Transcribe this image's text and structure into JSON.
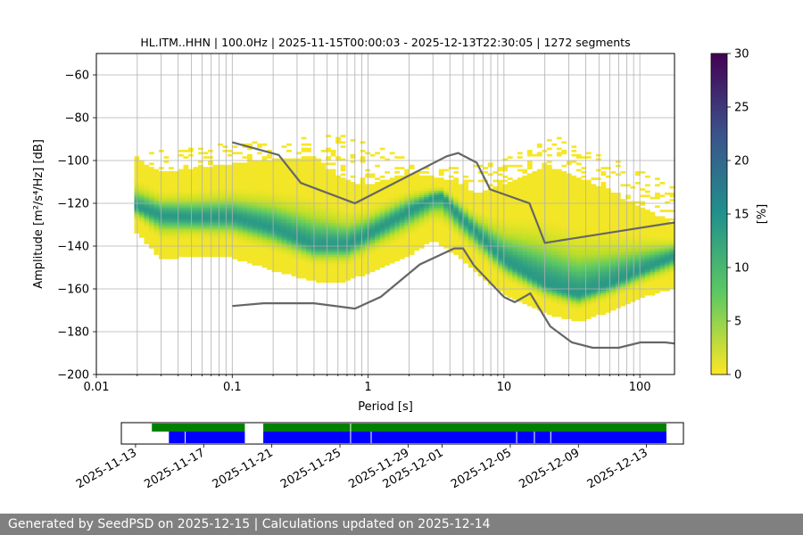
{
  "chart_data": [
    {
      "type": "heatmap",
      "title": "HL.ITM..HHN | 100.0Hz | 2025-11-15T00:00:03 - 2025-12-13T22:30:05 | 1272 segments",
      "xlabel": "Period [s]",
      "ylabel": "Amplitude [m²/s⁴/Hz] [dB]",
      "x_scale": "log",
      "xlim": [
        0.01,
        180
      ],
      "ylim": [
        -200,
        -50
      ],
      "x_ticks": [
        0.01,
        0.1,
        1,
        10,
        100
      ],
      "x_tick_labels": [
        "0.01",
        "0.1",
        "1",
        "10",
        "100"
      ],
      "y_ticks": [
        -200,
        -180,
        -160,
        -140,
        -120,
        -100,
        -80,
        -60
      ],
      "y_tick_labels": [
        "−200",
        "−180",
        "−160",
        "−140",
        "−120",
        "−100",
        "−80",
        "−60"
      ],
      "grid": true,
      "colorbar": {
        "label": "[%]",
        "range": [
          0,
          30
        ],
        "ticks": [
          0,
          5,
          10,
          15,
          20,
          25,
          30
        ],
        "tick_labels": [
          "0",
          "5",
          "10",
          "15",
          "20",
          "25",
          "30"
        ],
        "colormap": [
          "#440154",
          "#3b528b",
          "#21918c",
          "#5ec962",
          "#fde725"
        ]
      },
      "density": {
        "period_range": [
          0.019,
          180
        ],
        "mode_curve": [
          [
            0.02,
            -122
          ],
          [
            0.03,
            -126
          ],
          [
            0.05,
            -127
          ],
          [
            0.1,
            -127
          ],
          [
            0.2,
            -132
          ],
          [
            0.4,
            -140
          ],
          [
            0.7,
            -140
          ],
          [
            1,
            -135
          ],
          [
            2,
            -124
          ],
          [
            3,
            -118
          ],
          [
            3.5,
            -117
          ],
          [
            4.5,
            -125
          ],
          [
            6,
            -133
          ],
          [
            10,
            -147
          ],
          [
            20,
            -158
          ],
          [
            35,
            -163
          ],
          [
            60,
            -158
          ],
          [
            100,
            -152
          ],
          [
            180,
            -145
          ]
        ],
        "upper_curve": [
          [
            0.02,
            -100
          ],
          [
            0.03,
            -106
          ],
          [
            0.05,
            -104
          ],
          [
            0.1,
            -102
          ],
          [
            0.2,
            -100
          ],
          [
            0.4,
            -100
          ],
          [
            0.7,
            -110
          ],
          [
            1,
            -112
          ],
          [
            2,
            -106
          ],
          [
            3,
            -108
          ],
          [
            4.5,
            -110
          ],
          [
            6,
            -116
          ],
          [
            10,
            -112
          ],
          [
            20,
            -103
          ],
          [
            35,
            -108
          ],
          [
            60,
            -115
          ],
          [
            100,
            -122
          ],
          [
            180,
            -130
          ]
        ],
        "lower_curve": [
          [
            0.02,
            -134
          ],
          [
            0.03,
            -147
          ],
          [
            0.05,
            -145
          ],
          [
            0.1,
            -146
          ],
          [
            0.2,
            -152
          ],
          [
            0.4,
            -157
          ],
          [
            0.7,
            -157
          ],
          [
            1,
            -153
          ],
          [
            2,
            -145
          ],
          [
            3,
            -138
          ],
          [
            4.5,
            -145
          ],
          [
            6,
            -152
          ],
          [
            10,
            -163
          ],
          [
            20,
            -172
          ],
          [
            35,
            -176
          ],
          [
            60,
            -171
          ],
          [
            100,
            -165
          ],
          [
            180,
            -160
          ]
        ],
        "outer_spread": [
          [
            0.02,
            -97
          ],
          [
            0.2,
            -92
          ],
          [
            0.7,
            -89
          ],
          [
            3,
            -106
          ],
          [
            10,
            -100
          ],
          [
            25,
            -90
          ],
          [
            60,
            -100
          ],
          [
            180,
            -113
          ]
        ]
      },
      "noise_models": {
        "high": [
          [
            0.1,
            -91.5
          ],
          [
            0.22,
            -97.4
          ],
          [
            0.32,
            -110.5
          ],
          [
            0.8,
            -120
          ],
          [
            3.8,
            -98
          ],
          [
            4.6,
            -96.5
          ],
          [
            6.3,
            -101
          ],
          [
            7.9,
            -113.5
          ],
          [
            15.4,
            -120
          ],
          [
            20,
            -138.5
          ],
          [
            354.8,
            -126
          ]
        ],
        "low": [
          [
            0.1,
            -168
          ],
          [
            0.17,
            -166.7
          ],
          [
            0.4,
            -166.7
          ],
          [
            0.8,
            -169.2
          ],
          [
            1.24,
            -163.7
          ],
          [
            2.4,
            -148.6
          ],
          [
            4.3,
            -141.1
          ],
          [
            5,
            -141.1
          ],
          [
            6,
            -149
          ],
          [
            10,
            -163.8
          ],
          [
            12,
            -166.2
          ],
          [
            15.6,
            -162.1
          ],
          [
            21.9,
            -177.5
          ],
          [
            31.6,
            -185
          ],
          [
            45,
            -187.5
          ],
          [
            70,
            -187.5
          ],
          [
            101,
            -185
          ],
          [
            154,
            -185
          ],
          [
            328,
            -187.5
          ]
        ]
      }
    },
    {
      "type": "timeline",
      "x_ticks": [
        "2025-11-13",
        "2025-11-17",
        "2025-11-21",
        "2025-11-25",
        "2025-11-29",
        "2025-12-01",
        "2025-12-05",
        "2025-12-09",
        "2025-12-13"
      ],
      "xlim": [
        "2025-11-12T04:00",
        "2025-12-15T04:00"
      ],
      "rows": [
        {
          "color": "#008000",
          "segments": [
            [
              "2025-11-13T23:00",
              "2025-11-19T10:00"
            ],
            [
              "2025-11-20T12:00",
              "2025-12-14T04:00"
            ]
          ],
          "gaps": [
            "2025-11-25T15:00"
          ]
        },
        {
          "color": "#0000ff",
          "segments": [
            [
              "2025-11-14T23:00",
              "2025-11-19T10:00"
            ],
            [
              "2025-11-20T12:00",
              "2025-12-14T04:00"
            ]
          ],
          "gaps": [
            "2025-11-15T22:00",
            "2025-11-25T15:00",
            "2025-11-26T20:00",
            "2025-12-05T09:00",
            "2025-12-06T10:00",
            "2025-12-07T09:00"
          ]
        }
      ]
    }
  ],
  "footer": "Generated by SeedPSD on 2025-12-15 | Calculations updated on 2025-12-14"
}
